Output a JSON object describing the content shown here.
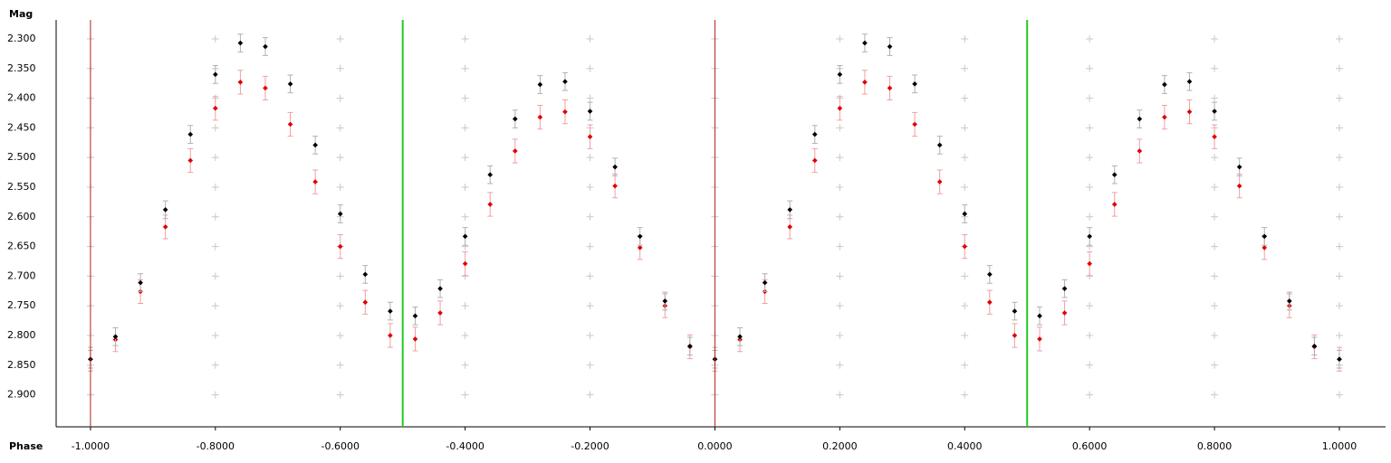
{
  "chart_data": {
    "type": "scatter",
    "y_label": "Mag",
    "x_label": "Phase",
    "xlim": [
      -1.055,
      1.074
    ],
    "ylim": [
      2.954,
      2.268
    ],
    "xticks": [
      {
        "value": -1,
        "label": "-1.0000"
      },
      {
        "value": -0.8,
        "label": "-0.8000"
      },
      {
        "value": -0.6,
        "label": "-0.6000"
      },
      {
        "value": -0.4,
        "label": "-0.4000"
      },
      {
        "value": -0.2,
        "label": "-0.2000"
      },
      {
        "value": 0,
        "label": "0.0000"
      },
      {
        "value": 0.2,
        "label": "0.2000"
      },
      {
        "value": 0.4,
        "label": "0.4000"
      },
      {
        "value": 0.6,
        "label": "0.6000"
      },
      {
        "value": 0.8,
        "label": "0.8000"
      },
      {
        "value": 1,
        "label": "1.0000"
      }
    ],
    "yticks": [
      {
        "value": 2.3,
        "label": "2.300"
      },
      {
        "value": 2.35,
        "label": "2.350"
      },
      {
        "value": 2.4,
        "label": "2.400"
      },
      {
        "value": 2.45,
        "label": "2.450"
      },
      {
        "value": 2.5,
        "label": "2.500"
      },
      {
        "value": 2.55,
        "label": "2.550"
      },
      {
        "value": 2.6,
        "label": "2.600"
      },
      {
        "value": 2.65,
        "label": "2.650"
      },
      {
        "value": 2.7,
        "label": "2.700"
      },
      {
        "value": 2.75,
        "label": "2.750"
      },
      {
        "value": 2.8,
        "label": "2.800"
      },
      {
        "value": 2.85,
        "label": "2.850"
      },
      {
        "value": 2.9,
        "label": "2.900"
      }
    ],
    "grid": true,
    "grid_color": "#c8c8c8",
    "vlines": [
      {
        "x": -1,
        "color": "#b22222"
      },
      {
        "x": -0.5,
        "color": "#22cc22"
      },
      {
        "x": 0,
        "color": "#b22222"
      },
      {
        "x": 0.5,
        "color": "#22cc22"
      }
    ],
    "x": [
      -1.0,
      -0.96,
      -0.92,
      -0.88,
      -0.84,
      -0.8,
      -0.76,
      -0.72,
      -0.68,
      -0.64,
      -0.6,
      -0.56,
      -0.52,
      -0.48,
      -0.44,
      -0.4,
      -0.36,
      -0.32,
      -0.28,
      -0.24,
      -0.2,
      -0.16,
      -0.12,
      -0.08,
      -0.04,
      0.0,
      0.04,
      0.08,
      0.12,
      0.16,
      0.2,
      0.24,
      0.28,
      0.32,
      0.36,
      0.4,
      0.44,
      0.48,
      0.52,
      0.56,
      0.6,
      0.64,
      0.68,
      0.72,
      0.76,
      0.8,
      0.84,
      0.88,
      0.92,
      0.96,
      1.0
    ],
    "series": [
      {
        "color": "#e00000",
        "error_color": "#f0a0a0",
        "error": 0.02,
        "values": [
          2.84,
          2.807,
          2.726,
          2.617,
          2.505,
          2.417,
          2.373,
          2.383,
          2.444,
          2.541,
          2.65,
          2.744,
          2.8,
          2.806,
          2.762,
          2.679,
          2.579,
          2.489,
          2.432,
          2.423,
          2.465,
          2.548,
          2.652,
          2.75,
          2.819,
          2.84,
          2.807,
          2.726,
          2.617,
          2.505,
          2.417,
          2.373,
          2.383,
          2.444,
          2.541,
          2.65,
          2.744,
          2.8,
          2.806,
          2.762,
          2.679,
          2.579,
          2.489,
          2.432,
          2.423,
          2.465,
          2.548,
          2.652,
          2.75,
          2.819,
          2.84
        ]
      },
      {
        "color": "#000000",
        "error_color": "#b0b0b0",
        "error": 0.015,
        "values": [
          2.84,
          2.802,
          2.711,
          2.588,
          2.461,
          2.36,
          2.307,
          2.313,
          2.376,
          2.479,
          2.595,
          2.697,
          2.759,
          2.767,
          2.721,
          2.633,
          2.529,
          2.435,
          2.377,
          2.372,
          2.422,
          2.516,
          2.633,
          2.742,
          2.818,
          2.84,
          2.802,
          2.711,
          2.588,
          2.461,
          2.36,
          2.307,
          2.313,
          2.376,
          2.479,
          2.595,
          2.697,
          2.759,
          2.767,
          2.721,
          2.633,
          2.529,
          2.435,
          2.377,
          2.372,
          2.422,
          2.516,
          2.633,
          2.742,
          2.818,
          2.84
        ]
      }
    ]
  }
}
